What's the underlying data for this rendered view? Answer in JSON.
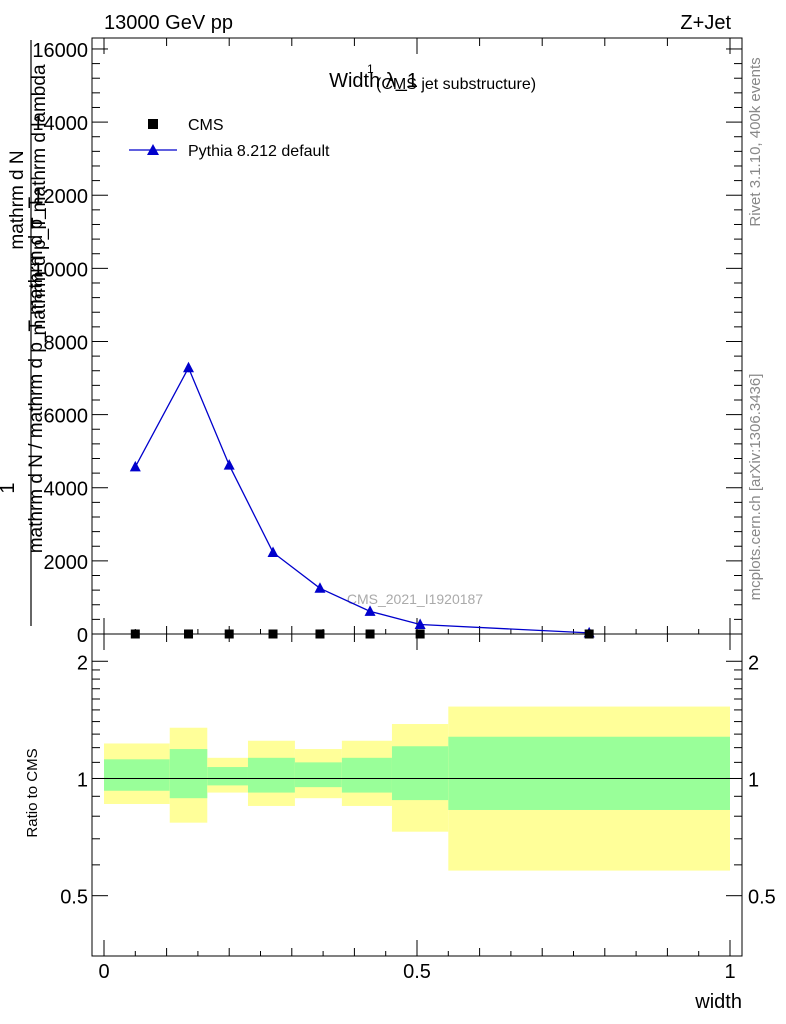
{
  "header": {
    "left": "13000 GeV pp",
    "right": "Z+Jet"
  },
  "side_labels": {
    "rivet": "Rivet 3.1.10,  400k events",
    "mcplots": "mcplots.cern.ch [arXiv:1306.3436]"
  },
  "chart_data": [
    {
      "type": "line",
      "title": "Width λ_1",
      "title_sup": "1",
      "subtitle": "(CMS jet substructure)",
      "ylabel_lines": [
        "1",
        "mathrm d N / mathrm d p_T mathrm d p_T",
        "mathrm d N",
        "mathrm d p_T mathrm d lambda"
      ],
      "ylim": [
        0,
        16300
      ],
      "yticks": [
        0,
        2000,
        4000,
        6000,
        8000,
        10000,
        12000,
        14000,
        16000
      ],
      "ytick_labels": [
        "0",
        "2000",
        "4000",
        "6000",
        "8000",
        "10000",
        "12000",
        "14000",
        "16000"
      ],
      "xlim": [
        0,
        1
      ],
      "watermark": "CMS_2021_I1920187",
      "legend": {
        "position": "top-left",
        "entries": [
          "CMS",
          "Pythia 8.212 default"
        ]
      },
      "series": [
        {
          "name": "CMS",
          "marker": "square",
          "color": "#000000",
          "x": [
            0.05,
            0.135,
            0.2,
            0.27,
            0.345,
            0.425,
            0.505,
            0.775
          ],
          "y": [
            0,
            0,
            0,
            0,
            0,
            0,
            0,
            0
          ]
        },
        {
          "name": "Pythia 8.212 default",
          "marker": "triangle",
          "color": "#0000cc",
          "x": [
            0.05,
            0.135,
            0.2,
            0.27,
            0.345,
            0.425,
            0.505,
            0.775
          ],
          "y": [
            4570,
            7280,
            4620,
            2230,
            1250,
            620,
            260,
            30
          ],
          "err": [
            60,
            120,
            90,
            50,
            35,
            25,
            15,
            8
          ]
        }
      ]
    },
    {
      "type": "area",
      "ylabel": "Ratio to CMS",
      "xlabel": "width",
      "xlim": [
        0,
        1
      ],
      "ylim": [
        0.35,
        2.35
      ],
      "yticks": [
        0.5,
        1,
        2
      ],
      "ytick_labels": [
        "0.5",
        "1",
        "2"
      ],
      "xticks": [
        0,
        0.5,
        1
      ],
      "xtick_labels": [
        "0",
        "0.5",
        "1"
      ],
      "bins": [
        {
          "lo": 0.0,
          "hi": 0.105,
          "inner": [
            0.93,
            1.12
          ],
          "outer": [
            0.86,
            1.23
          ]
        },
        {
          "lo": 0.105,
          "hi": 0.165,
          "inner": [
            0.89,
            1.19
          ],
          "outer": [
            0.77,
            1.35
          ]
        },
        {
          "lo": 0.165,
          "hi": 0.23,
          "inner": [
            0.96,
            1.07
          ],
          "outer": [
            0.92,
            1.13
          ]
        },
        {
          "lo": 0.23,
          "hi": 0.305,
          "inner": [
            0.92,
            1.13
          ],
          "outer": [
            0.85,
            1.25
          ]
        },
        {
          "lo": 0.305,
          "hi": 0.38,
          "inner": [
            0.95,
            1.1
          ],
          "outer": [
            0.89,
            1.19
          ]
        },
        {
          "lo": 0.38,
          "hi": 0.46,
          "inner": [
            0.92,
            1.13
          ],
          "outer": [
            0.85,
            1.25
          ]
        },
        {
          "lo": 0.46,
          "hi": 0.55,
          "inner": [
            0.88,
            1.21
          ],
          "outer": [
            0.73,
            1.38
          ]
        },
        {
          "lo": 0.55,
          "hi": 1.0,
          "inner": [
            0.83,
            1.28
          ],
          "outer": [
            0.58,
            1.53
          ]
        }
      ],
      "series": [
        {
          "name": "Pythia 8.212 default",
          "color": "#0000cc",
          "x": [
            0,
            1
          ],
          "y": [
            1,
            1
          ]
        }
      ],
      "band_colors": {
        "inner": "#99ff99",
        "outer": "#ffff99"
      }
    }
  ]
}
